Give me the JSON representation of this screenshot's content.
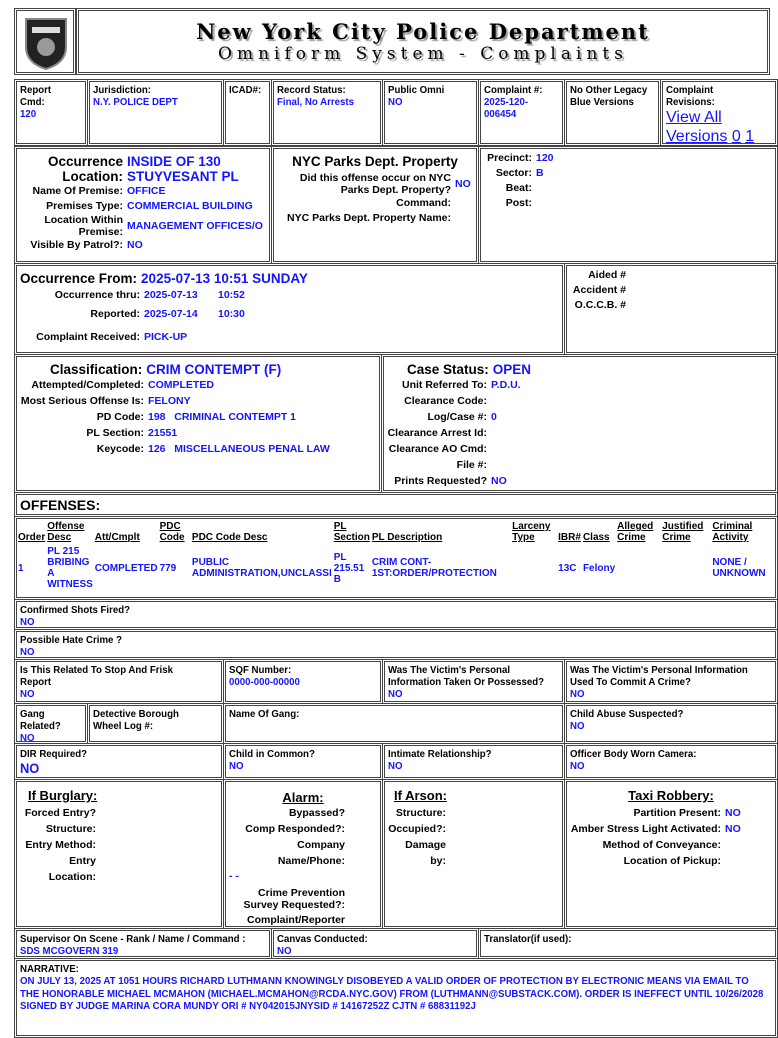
{
  "header": {
    "logo_text": "POLICE DEPARTMENT",
    "title": "New York City Police Department",
    "subtitle": "Omniform System - Complaints"
  },
  "top": {
    "report_cmd": {
      "label": "Report Cmd:",
      "value": "120"
    },
    "jurisdiction": {
      "label": "Jurisdiction:",
      "value": "N.Y. POLICE DEPT"
    },
    "icad": {
      "label": "ICAD#:"
    },
    "record_status": {
      "label": "Record Status:",
      "value": "Final, No Arrests"
    },
    "public_omni": {
      "label": "Public Omni",
      "value": "NO"
    },
    "complaint_no": {
      "label": "Complaint #:",
      "value": "2025-120-006454"
    },
    "legacy": {
      "label": "No Other Legacy Blue Versions"
    },
    "revisions": {
      "label": "Complaint Revisions:",
      "link": "View All Versions",
      "v0": "0",
      "v1": "1"
    }
  },
  "occurrence": {
    "label": "Occurrence Location:",
    "location": "INSIDE OF 130 STUYVESANT PL",
    "premise_name_label": "Name Of Premise:",
    "premise_name": "OFFICE",
    "premise_type_label": "Premises Type:",
    "premise_type": "COMMERCIAL BUILDING",
    "within_label": "Location Within Premise:",
    "within": "MANAGEMENT OFFICES/O",
    "visible_label": "Visible By Patrol?:",
    "visible": "NO"
  },
  "parks": {
    "title": "NYC Parks Dept. Property",
    "q_label": "Did this offense occur on NYC Parks Dept. Property?",
    "q": "NO",
    "command_label": "Command:",
    "name_label": "NYC Parks Dept. Property Name:"
  },
  "precinct": {
    "precinct_label": "Precinct:",
    "precinct": "120",
    "sector_label": "Sector:",
    "sector": "B",
    "beat_label": "Beat:",
    "post_label": "Post:"
  },
  "dates": {
    "from_label": "Occurrence From:",
    "from": "2025-07-13 10:51 SUNDAY",
    "thru_label": "Occurrence thru:",
    "thru_date": "2025-07-13",
    "thru_time": "10:52",
    "reported_label": "Reported:",
    "reported_date": "2025-07-14",
    "reported_time": "10:30",
    "received_label": "Complaint Received:",
    "received": "PICK-UP",
    "aided_label": "Aided #",
    "accident_label": "Accident #",
    "occb_label": "O.C.C.B. #"
  },
  "classification": {
    "label": "Classification:",
    "value": "CRIM CONTEMPT (F)",
    "att_label": "Attempted/Completed:",
    "att": "COMPLETED",
    "serious_label": "Most Serious Offense Is:",
    "serious": "FELONY",
    "pd_label": "PD Code:",
    "pd": "198   CRIMINAL CONTEMPT 1",
    "pl_label": "PL Section:",
    "pl": "21551",
    "key_label": "Keycode:",
    "key": "126   MISCELLANEOUS PENAL LAW"
  },
  "case": {
    "label": "Case Status:",
    "value": "OPEN",
    "unit_label": "Unit Referred To:",
    "unit": "P.D.U.",
    "clear_label": "Clearance Code:",
    "log_label": "Log/Case #:",
    "log": "0",
    "arrest_label": "Clearance Arrest Id:",
    "ao_label": "Clearance AO Cmd:",
    "file_label": "File #:",
    "prints_label": "Prints Requested?",
    "prints": "NO"
  },
  "offenses": {
    "title": "OFFENSES:",
    "headers": [
      "Order",
      "Offense Desc",
      "Att/Cmplt",
      "PDC Code",
      "PDC Code Desc",
      "PL Section",
      "PL Description",
      "Larceny Type",
      "IBR#",
      "Class",
      "Alleged Crime",
      "Justified Crime",
      "Criminal Activity"
    ],
    "rows": [
      [
        "1",
        "PL 215 BRIBING A WITNESS",
        "COMPLETED",
        "779",
        "PUBLIC ADMINISTRATION,UNCLASSI",
        "PL 215.51 B",
        "CRIM CONT-1ST:ORDER/PROTECTION",
        "",
        "13C",
        "Felony",
        "",
        "",
        "NONE / UNKNOWN"
      ]
    ]
  },
  "shots": {
    "label": "Confirmed Shots Fired?",
    "value": "NO"
  },
  "hate": {
    "label": "Possible Hate Crime ?",
    "value": "NO"
  },
  "r1": {
    "sqf_rel": {
      "label": "Is This Related To Stop And Frisk Report",
      "value": "NO"
    },
    "sqf": {
      "label": "SQF Number:",
      "value": "0000-000-00000"
    },
    "victim_taken": {
      "label": "Was The Victim's Personal Information Taken Or Possessed?",
      "value": "NO"
    },
    "victim_used": {
      "label": "Was The Victim's Personal Information Used To Commit A Crime?",
      "value": "NO"
    }
  },
  "r2": {
    "gang": {
      "label": "Gang Related?",
      "value": "NO"
    },
    "wheel": {
      "label": "Detective Borough Wheel Log #:"
    },
    "gang_name": {
      "label": "Name Of Gang:"
    },
    "child_abuse": {
      "label": "Child Abuse Suspected?",
      "value": "NO"
    }
  },
  "r3": {
    "dir": {
      "label": "DIR Required?",
      "value": "NO"
    },
    "child": {
      "label": "Child in Common?",
      "value": "NO"
    },
    "intimate": {
      "label": "Intimate Relationship?",
      "value": "NO"
    },
    "camera": {
      "label": "Officer Body Worn Camera:",
      "value": "NO"
    }
  },
  "burglary": {
    "title": "If Burglary:",
    "items": [
      "Forced Entry?",
      "Structure:",
      "Entry Method:",
      "Entry Location:"
    ]
  },
  "alarm": {
    "title": "Alarm:",
    "items": [
      "Bypassed?",
      "Comp Responded?:",
      "Company Name/Phone:"
    ],
    "phone": "- -",
    "survey": "Crime Prevention Survey Requested?:",
    "reporter": "Complaint/Reporter Present?:"
  },
  "arson": {
    "title": "If Arson:",
    "items": [
      "Structure:",
      "Occupied?:",
      "Damage by:"
    ]
  },
  "taxi": {
    "title": "Taxi Robbery:",
    "partition_label": "Partition Present:",
    "partition": "NO",
    "amber_label": "Amber Stress Light Activated:",
    "amber": "NO",
    "method_label": "Method of Conveyance:",
    "pickup_label": "Location of Pickup:"
  },
  "bottom": {
    "supervisor": {
      "label": "Supervisor On Scene - Rank / Name / Command :",
      "value": "SDS MCGOVERN 319"
    },
    "canvas": {
      "label": "Canvas Conducted:",
      "value": "NO"
    },
    "translator": {
      "label": "Translator(if used):"
    }
  },
  "narrative": {
    "label": "NARRATIVE:",
    "text": "ON JULY 13, 2025 AT 1051 HOURS RICHARD LUTHMANN KNOWINGLY DISOBEYED A VALID ORDER OF PROTECTION BY ELECTRONIC MEANS VIA EMAIL TO THE HONORABLE MICHAEL MCMAHON (MICHAEL.MCMAHON@RCDA.NYC.GOV) FROM (LUTHMANN@SUBSTACK.COM). ORDER IS INEFFECT UNTIL 10/26/2028 SIGNED BY JUDGE MARINA CORA MUNDY ORI # NY042015JNYSID # 14167252Z CJTN # 68831192J"
  },
  "colors": {
    "value_blue": "#1414ff",
    "border": "#444444"
  }
}
